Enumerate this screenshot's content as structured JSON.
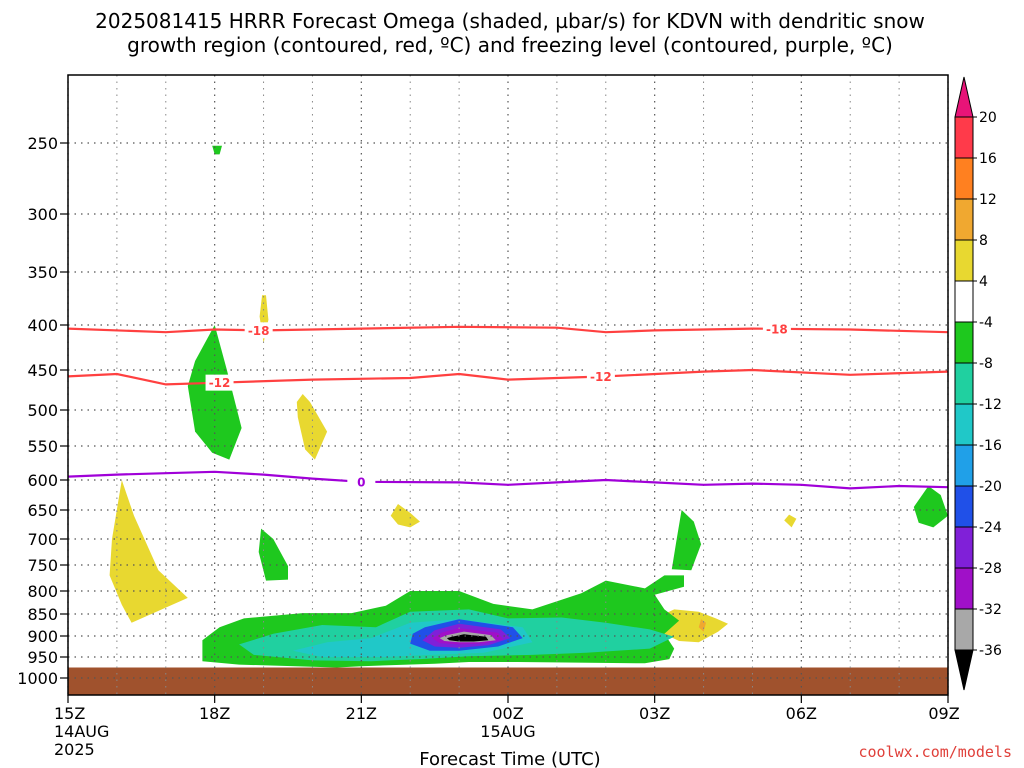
{
  "chart_data": {
    "type": "heatmap",
    "title_lines": [
      "2025081415 HRRR Forecast Omega (shaded, µbar/s) for KDVN with dendritic snow",
      "growth region (contoured, red, ºC) and freezing level (contoured, purple, ºC)"
    ],
    "xlabel": "Forecast Time (UTC)",
    "credit": "coolwx.com/models",
    "x_ticks": [
      {
        "hour": 0,
        "lines": [
          "15Z",
          "14AUG",
          "2025"
        ]
      },
      {
        "hour": 3,
        "lines": [
          "18Z"
        ]
      },
      {
        "hour": 6,
        "lines": [
          "21Z"
        ]
      },
      {
        "hour": 9,
        "lines": [
          "00Z",
          "15AUG"
        ]
      },
      {
        "hour": 12,
        "lines": [
          "03Z"
        ]
      },
      {
        "hour": 15,
        "lines": [
          "06Z"
        ]
      },
      {
        "hour": 18,
        "lines": [
          "09Z"
        ]
      }
    ],
    "y_ticks": [
      250,
      300,
      350,
      400,
      450,
      500,
      550,
      600,
      650,
      700,
      750,
      800,
      850,
      900,
      950,
      1000
    ],
    "ylim": [
      1000,
      200
    ],
    "colorbar": {
      "levels": [
        20,
        16,
        12,
        8,
        4,
        -4,
        -8,
        -12,
        -16,
        -20,
        -24,
        -28,
        -32,
        -36
      ],
      "colors": [
        "#ff3a4a",
        "#ff8020",
        "#f0a830",
        "#e8d830",
        "#ffffff",
        "#1ec81e",
        "#20d0a0",
        "#20c8c8",
        "#20a0e8",
        "#2050e8",
        "#8020d8",
        "#a010c8",
        "#a8a8a8",
        "#000000"
      ],
      "top_arrow_color": "#e81478",
      "bottom_arrow_color": "#000000"
    },
    "contours": [
      {
        "name": "dendritic snow growth region",
        "level": -18,
        "color": "#ff4040",
        "points": [
          [
            0,
            404
          ],
          [
            2,
            408
          ],
          [
            3,
            405
          ],
          [
            4,
            406
          ],
          [
            6,
            404
          ],
          [
            8,
            402
          ],
          [
            10,
            403
          ],
          [
            11,
            408
          ],
          [
            12,
            406
          ],
          [
            14,
            404
          ],
          [
            16,
            405
          ],
          [
            18,
            408
          ]
        ],
        "labels": [
          {
            "hour": 3.9,
            "text": "-18"
          },
          {
            "hour": 14.5,
            "text": "-18"
          }
        ]
      },
      {
        "name": "dendritic snow growth region",
        "level": -12,
        "color": "#ff4040",
        "points": [
          [
            0,
            458
          ],
          [
            1,
            455
          ],
          [
            2,
            468
          ],
          [
            3,
            466
          ],
          [
            5,
            462
          ],
          [
            7,
            460
          ],
          [
            8,
            455
          ],
          [
            9,
            462
          ],
          [
            11,
            458
          ],
          [
            13,
            452
          ],
          [
            14,
            450
          ],
          [
            16,
            456
          ],
          [
            18,
            452
          ]
        ],
        "labels": [
          {
            "hour": 3.1,
            "text": "-12"
          },
          {
            "hour": 10.9,
            "text": "-12"
          }
        ]
      },
      {
        "name": "freezing level",
        "level": 0,
        "color": "#a000d8",
        "points": [
          [
            0,
            595
          ],
          [
            1,
            592
          ],
          [
            2,
            590
          ],
          [
            3,
            588
          ],
          [
            4,
            592
          ],
          [
            5,
            598
          ],
          [
            6,
            603
          ],
          [
            8,
            604
          ],
          [
            9,
            608
          ],
          [
            10,
            604
          ],
          [
            11,
            600
          ],
          [
            12,
            604
          ],
          [
            13,
            608
          ],
          [
            14,
            606
          ],
          [
            15,
            608
          ],
          [
            16,
            614
          ],
          [
            17,
            610
          ],
          [
            18,
            612
          ]
        ],
        "labels": [
          {
            "hour": 6.0,
            "text": "0"
          }
        ]
      }
    ],
    "shaded_regions": [
      {
        "level": -8,
        "polygon": [
          [
            2.95,
            252
          ],
          [
            3.15,
            252
          ],
          [
            3.1,
            258
          ],
          [
            3.0,
            258
          ]
        ]
      },
      {
        "level": -8,
        "polygon": [
          [
            2.8,
            420
          ],
          [
            3.0,
            400
          ],
          [
            3.25,
            450
          ],
          [
            3.55,
            525
          ],
          [
            3.3,
            570
          ],
          [
            2.95,
            560
          ],
          [
            2.6,
            530
          ],
          [
            2.45,
            470
          ],
          [
            2.6,
            440
          ]
        ]
      },
      {
        "level": 8,
        "polygon": [
          [
            4.05,
            372
          ],
          [
            4.1,
            395
          ],
          [
            4.0,
            420
          ],
          [
            3.92,
            392
          ],
          [
            3.97,
            372
          ]
        ]
      },
      {
        "level": 8,
        "polygon": [
          [
            4.8,
            480
          ],
          [
            4.95,
            490
          ],
          [
            5.3,
            530
          ],
          [
            5.05,
            570
          ],
          [
            4.85,
            555
          ],
          [
            4.7,
            510
          ],
          [
            4.68,
            490
          ]
        ]
      },
      {
        "level": -8,
        "polygon": [
          [
            3.95,
            682
          ],
          [
            4.2,
            700
          ],
          [
            4.5,
            752
          ],
          [
            4.5,
            778
          ],
          [
            4.05,
            780
          ],
          [
            3.9,
            725
          ]
        ]
      },
      {
        "level": 8,
        "polygon": [
          [
            1.1,
            600
          ],
          [
            1.35,
            660
          ],
          [
            1.85,
            760
          ],
          [
            2.45,
            815
          ],
          [
            1.3,
            870
          ],
          [
            1.1,
            830
          ],
          [
            0.85,
            770
          ],
          [
            0.9,
            700
          ]
        ]
      },
      {
        "level": 8,
        "polygon": [
          [
            6.75,
            640
          ],
          [
            7.0,
            655
          ],
          [
            7.2,
            670
          ],
          [
            7.0,
            680
          ],
          [
            6.75,
            675
          ],
          [
            6.6,
            660
          ]
        ]
      },
      {
        "level": 8,
        "polygon": [
          [
            14.75,
            658
          ],
          [
            14.9,
            665
          ],
          [
            14.8,
            680
          ],
          [
            14.65,
            668
          ]
        ]
      },
      {
        "level": -8,
        "polygon": [
          [
            12.55,
            650
          ],
          [
            12.8,
            670
          ],
          [
            12.95,
            710
          ],
          [
            12.75,
            760
          ],
          [
            12.35,
            758
          ],
          [
            12.45,
            700
          ]
        ]
      },
      {
        "level": -8,
        "polygon": [
          [
            17.6,
            610
          ],
          [
            17.85,
            625
          ],
          [
            18.0,
            660
          ],
          [
            17.7,
            680
          ],
          [
            17.4,
            672
          ],
          [
            17.3,
            645
          ]
        ]
      },
      {
        "level": 8,
        "polygon": [
          [
            12.4,
            840
          ],
          [
            12.9,
            845
          ],
          [
            13.25,
            860
          ],
          [
            13.5,
            872
          ],
          [
            13.3,
            890
          ],
          [
            12.9,
            915
          ],
          [
            12.5,
            912
          ],
          [
            12.1,
            890
          ],
          [
            12.0,
            870
          ],
          [
            12.2,
            850
          ]
        ]
      },
      {
        "level": 12,
        "polygon": [
          [
            12.95,
            862
          ],
          [
            13.05,
            870
          ],
          [
            13.0,
            890
          ],
          [
            12.9,
            880
          ]
        ]
      },
      {
        "level": -8,
        "polygon": [
          [
            2.75,
            910
          ],
          [
            3.1,
            880
          ],
          [
            3.6,
            860
          ],
          [
            4.8,
            848
          ],
          [
            5.8,
            848
          ],
          [
            6.5,
            832
          ],
          [
            7.0,
            800
          ],
          [
            8.0,
            800
          ],
          [
            8.7,
            828
          ],
          [
            9.5,
            840
          ],
          [
            10.5,
            805
          ],
          [
            11.0,
            780
          ],
          [
            11.8,
            795
          ],
          [
            12.2,
            770
          ],
          [
            12.6,
            770
          ],
          [
            12.6,
            792
          ],
          [
            12.0,
            808
          ],
          [
            12.2,
            840
          ],
          [
            12.5,
            865
          ],
          [
            12.2,
            895
          ],
          [
            12.4,
            930
          ],
          [
            12.3,
            955
          ],
          [
            11.8,
            965
          ],
          [
            9.2,
            962
          ],
          [
            8.2,
            962
          ],
          [
            7.5,
            966
          ],
          [
            6.0,
            972
          ],
          [
            5.5,
            975
          ],
          [
            3.5,
            968
          ],
          [
            2.75,
            960
          ]
        ]
      },
      {
        "level": -12,
        "polygon": [
          [
            3.5,
            920
          ],
          [
            4.2,
            895
          ],
          [
            5.2,
            875
          ],
          [
            6.3,
            880
          ],
          [
            7.0,
            845
          ],
          [
            8.2,
            840
          ],
          [
            9.0,
            860
          ],
          [
            10.1,
            858
          ],
          [
            11.0,
            870
          ],
          [
            11.9,
            885
          ],
          [
            12.4,
            902
          ],
          [
            11.9,
            930
          ],
          [
            10.6,
            940
          ],
          [
            9.5,
            945
          ],
          [
            8.2,
            948
          ],
          [
            7.2,
            955
          ],
          [
            6.2,
            960
          ],
          [
            5.0,
            958
          ],
          [
            3.8,
            945
          ]
        ]
      },
      {
        "level": -16,
        "polygon": [
          [
            4.6,
            935
          ],
          [
            5.3,
            915
          ],
          [
            6.2,
            905
          ],
          [
            7.0,
            870
          ],
          [
            8.0,
            862
          ],
          [
            9.3,
            880
          ],
          [
            9.5,
            915
          ],
          [
            8.5,
            940
          ],
          [
            7.4,
            945
          ],
          [
            6.5,
            950
          ],
          [
            5.2,
            950
          ]
        ]
      },
      {
        "level": -20,
        "polygon": [
          [
            7.3,
            880
          ],
          [
            8.0,
            862
          ],
          [
            9.1,
            880
          ],
          [
            9.3,
            905
          ],
          [
            8.8,
            925
          ],
          [
            8.0,
            935
          ],
          [
            7.4,
            935
          ],
          [
            7.0,
            918
          ],
          [
            7.05,
            895
          ]
        ]
      },
      {
        "level": -24,
        "polygon": [
          [
            7.5,
            887
          ],
          [
            8.0,
            872
          ],
          [
            8.85,
            885
          ],
          [
            9.05,
            905
          ],
          [
            8.6,
            922
          ],
          [
            8.0,
            928
          ],
          [
            7.5,
            925
          ],
          [
            7.25,
            910
          ]
        ]
      },
      {
        "level": -28,
        "polygon": [
          [
            7.65,
            892
          ],
          [
            8.0,
            882
          ],
          [
            8.8,
            893
          ],
          [
            8.9,
            908
          ],
          [
            8.5,
            918
          ],
          [
            8.0,
            920
          ],
          [
            7.6,
            917
          ],
          [
            7.45,
            905
          ]
        ]
      },
      {
        "level": -32,
        "polygon": [
          [
            7.75,
            898
          ],
          [
            8.1,
            890
          ],
          [
            8.65,
            898
          ],
          [
            8.75,
            910
          ],
          [
            8.4,
            915
          ],
          [
            8.0,
            915
          ],
          [
            7.7,
            912
          ],
          [
            7.6,
            905
          ]
        ]
      },
      {
        "level": -36,
        "polygon": [
          [
            7.85,
            902
          ],
          [
            8.1,
            896
          ],
          [
            8.55,
            902
          ],
          [
            8.6,
            910
          ],
          [
            8.3,
            913
          ],
          [
            8.0,
            913
          ],
          [
            7.8,
            910
          ],
          [
            7.75,
            905
          ]
        ]
      }
    ]
  }
}
